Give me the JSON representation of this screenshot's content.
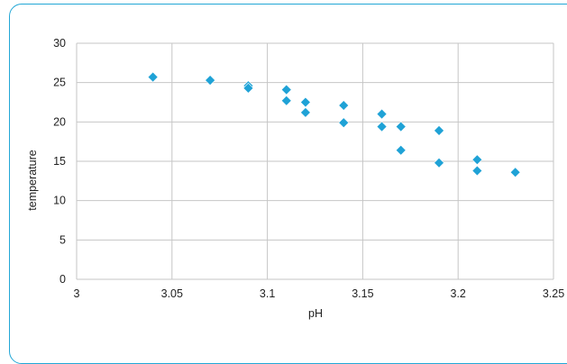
{
  "chart_data": {
    "type": "scatter",
    "title": "",
    "xlabel": "pH",
    "ylabel": "temperature",
    "xlim": [
      3,
      3.25
    ],
    "ylim": [
      0,
      30
    ],
    "xticks": [
      3,
      3.05,
      3.1,
      3.15,
      3.2,
      3.25
    ],
    "xtick_labels": [
      "3",
      "3.05",
      "3.1",
      "3.15",
      "3.2",
      "3.25"
    ],
    "yticks": [
      0,
      5,
      10,
      15,
      20,
      25,
      30
    ],
    "ytick_labels": [
      "0",
      "5",
      "10",
      "15",
      "20",
      "25",
      "30"
    ],
    "grid": "both",
    "legend": "none",
    "marker": "diamond",
    "series": [
      {
        "x": [
          3.04,
          3.07,
          3.09,
          3.09,
          3.11,
          3.11,
          3.12,
          3.12,
          3.14,
          3.14,
          3.16,
          3.16,
          3.17,
          3.17,
          3.19,
          3.19,
          3.21,
          3.21,
          3.23
        ],
        "y": [
          25.7,
          25.3,
          24.6,
          24.3,
          24.1,
          22.7,
          22.5,
          21.2,
          22.1,
          19.9,
          21.0,
          19.4,
          19.4,
          16.4,
          18.9,
          14.8,
          15.2,
          13.8,
          13.6
        ]
      }
    ]
  },
  "colors": {
    "marker": "#1fa2d6",
    "grid": "#c6c6c6",
    "frame": "#22a7d6"
  }
}
